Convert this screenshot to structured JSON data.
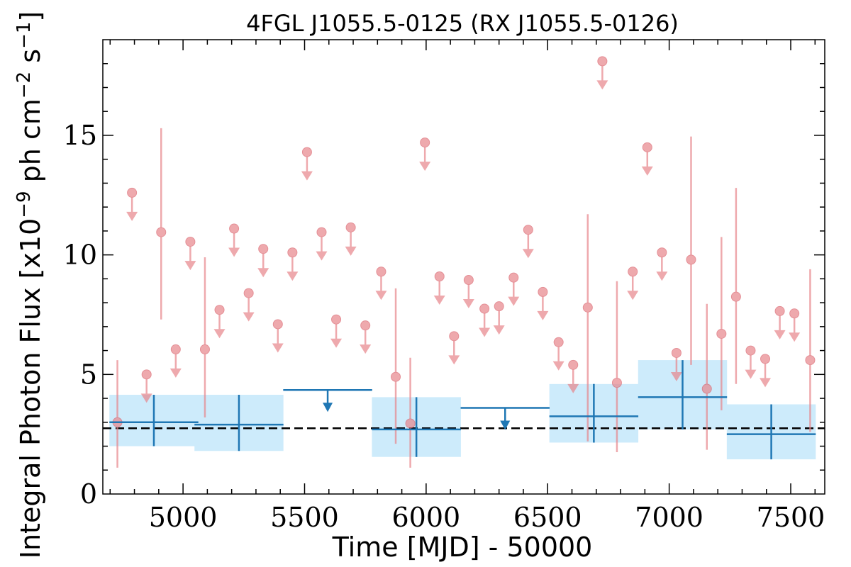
{
  "chart_data": {
    "type": "scatter",
    "title": "4FGL J1055.5-0125 (RX J1055.5-0126)",
    "xlabel": "Time [MJD] - 50000",
    "ylabel": "Integral Photon Flux [x10",
    "ylabel_exp1": "−9",
    "ylabel_mid": " ph cm",
    "ylabel_exp2": "−2",
    "ylabel_mid2": " s",
    "ylabel_exp3": "−1",
    "ylabel_end": "]",
    "xlim": [
      4670,
      7640
    ],
    "ylim": [
      0,
      19
    ],
    "xticks": [
      5000,
      5500,
      6000,
      6500,
      7000,
      7500
    ],
    "yticks": [
      0,
      5,
      10,
      15
    ],
    "grid": false,
    "mean_flux": 2.75,
    "colors": {
      "short_bins": "#e8858b",
      "long_bins": "#1f77b4",
      "band": "#cdebfb",
      "mean_line": "#000000"
    },
    "long_bins": [
      {
        "x": 4880,
        "xerr": 183,
        "y": 3.0,
        "ylow": 2.0,
        "yhigh": 4.15,
        "upper_limit": false
      },
      {
        "x": 5230,
        "xerr": 183,
        "y": 2.9,
        "ylow": 1.8,
        "yhigh": 4.15,
        "upper_limit": false
      },
      {
        "x": 5595,
        "xerr": 183,
        "y": 4.35,
        "upper_limit": true
      },
      {
        "x": 5960,
        "xerr": 183,
        "y": 2.7,
        "ylow": 1.55,
        "yhigh": 4.05,
        "upper_limit": false
      },
      {
        "x": 6325,
        "xerr": 183,
        "y": 3.6,
        "upper_limit": true
      },
      {
        "x": 6690,
        "xerr": 183,
        "y": 3.25,
        "ylow": 2.15,
        "yhigh": 4.6,
        "upper_limit": false
      },
      {
        "x": 7055,
        "xerr": 183,
        "y": 4.05,
        "ylow": 2.7,
        "yhigh": 5.6,
        "upper_limit": false
      },
      {
        "x": 7420,
        "xerr": 183,
        "y": 2.5,
        "ylow": 1.45,
        "yhigh": 3.75,
        "upper_limit": false
      }
    ],
    "short_bins": [
      {
        "x": 4730,
        "y": 3.0,
        "ylow": 1.1,
        "yhigh": 5.6,
        "upper_limit": false
      },
      {
        "x": 4790,
        "y": 12.6,
        "upper_limit": true
      },
      {
        "x": 4850,
        "y": 5.0,
        "upper_limit": true
      },
      {
        "x": 4910,
        "y": 10.95,
        "ylow": 7.3,
        "yhigh": 15.3,
        "upper_limit": false
      },
      {
        "x": 4970,
        "y": 6.05,
        "upper_limit": true
      },
      {
        "x": 5030,
        "y": 10.55,
        "upper_limit": true
      },
      {
        "x": 5090,
        "y": 6.05,
        "ylow": 3.2,
        "yhigh": 9.9,
        "upper_limit": false
      },
      {
        "x": 5150,
        "y": 7.7,
        "upper_limit": true
      },
      {
        "x": 5210,
        "y": 11.1,
        "upper_limit": true
      },
      {
        "x": 5270,
        "y": 8.4,
        "upper_limit": true
      },
      {
        "x": 5330,
        "y": 10.25,
        "upper_limit": true
      },
      {
        "x": 5390,
        "y": 7.1,
        "upper_limit": true
      },
      {
        "x": 5450,
        "y": 10.1,
        "upper_limit": true
      },
      {
        "x": 5510,
        "y": 14.3,
        "upper_limit": true
      },
      {
        "x": 5570,
        "y": 10.95,
        "upper_limit": true
      },
      {
        "x": 5630,
        "y": 7.3,
        "upper_limit": true
      },
      {
        "x": 5690,
        "y": 11.15,
        "upper_limit": true
      },
      {
        "x": 5750,
        "y": 7.05,
        "upper_limit": true
      },
      {
        "x": 5815,
        "y": 9.3,
        "upper_limit": true
      },
      {
        "x": 5875,
        "y": 4.9,
        "ylow": 2.1,
        "yhigh": 8.6,
        "upper_limit": false
      },
      {
        "x": 5935,
        "y": 2.95,
        "ylow": 1.1,
        "yhigh": 5.7,
        "upper_limit": false
      },
      {
        "x": 5995,
        "y": 14.7,
        "upper_limit": true
      },
      {
        "x": 6055,
        "y": 9.1,
        "upper_limit": true
      },
      {
        "x": 6115,
        "y": 6.6,
        "upper_limit": true
      },
      {
        "x": 6175,
        "y": 8.95,
        "upper_limit": true
      },
      {
        "x": 6240,
        "y": 7.75,
        "upper_limit": true
      },
      {
        "x": 6300,
        "y": 7.85,
        "upper_limit": true
      },
      {
        "x": 6360,
        "y": 9.05,
        "upper_limit": true
      },
      {
        "x": 6420,
        "y": 11.05,
        "upper_limit": true
      },
      {
        "x": 6480,
        "y": 8.45,
        "upper_limit": true
      },
      {
        "x": 6545,
        "y": 6.35,
        "upper_limit": true
      },
      {
        "x": 6605,
        "y": 5.4,
        "upper_limit": true
      },
      {
        "x": 6665,
        "y": 7.8,
        "ylow": 2.2,
        "yhigh": 11.7,
        "upper_limit": false
      },
      {
        "x": 6725,
        "y": 18.1,
        "upper_limit": true
      },
      {
        "x": 6785,
        "y": 4.65,
        "ylow": 1.75,
        "yhigh": 8.9,
        "upper_limit": false
      },
      {
        "x": 6850,
        "y": 9.3,
        "upper_limit": true
      },
      {
        "x": 6910,
        "y": 14.5,
        "upper_limit": true
      },
      {
        "x": 6970,
        "y": 10.1,
        "upper_limit": true
      },
      {
        "x": 7030,
        "y": 5.9,
        "upper_limit": true
      },
      {
        "x": 7090,
        "y": 9.8,
        "ylow": 5.4,
        "yhigh": 14.95,
        "upper_limit": false
      },
      {
        "x": 7155,
        "y": 4.4,
        "ylow": 1.85,
        "yhigh": 7.95,
        "upper_limit": false
      },
      {
        "x": 7215,
        "y": 6.7,
        "ylow": 3.5,
        "yhigh": 10.75,
        "upper_limit": false
      },
      {
        "x": 7275,
        "y": 8.25,
        "ylow": 4.6,
        "yhigh": 12.8,
        "upper_limit": false
      },
      {
        "x": 7335,
        "y": 6.0,
        "upper_limit": true
      },
      {
        "x": 7395,
        "y": 5.65,
        "upper_limit": true
      },
      {
        "x": 7455,
        "y": 7.65,
        "upper_limit": true
      },
      {
        "x": 7515,
        "y": 7.55,
        "upper_limit": true
      },
      {
        "x": 7580,
        "y": 5.6,
        "ylow": 2.6,
        "yhigh": 9.4,
        "upper_limit": false
      }
    ]
  }
}
